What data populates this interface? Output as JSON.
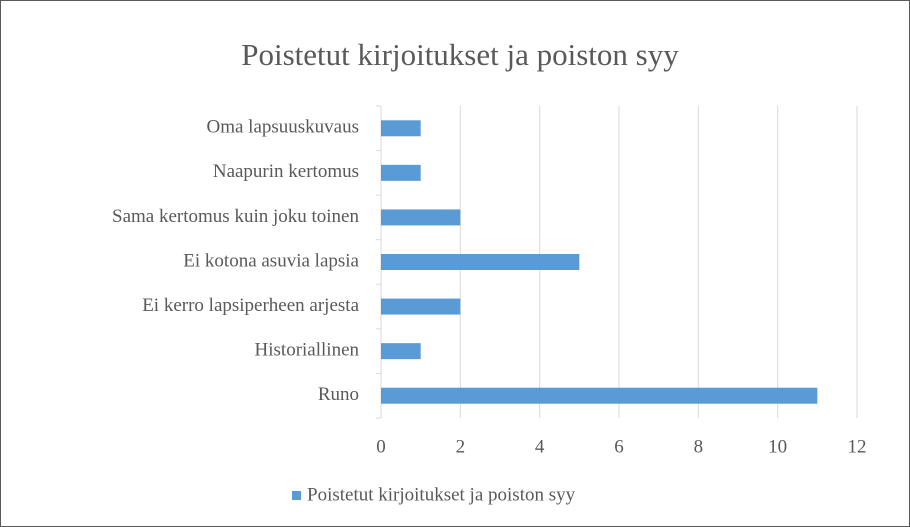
{
  "chart_data": {
    "type": "barh",
    "title": "Poistetut kirjoitukset ja poiston syy",
    "categories": [
      "Oma lapsuuskuvaus",
      "Naapurin kertomus",
      "Sama kertomus kuin joku toinen",
      "Ei kotona asuvia lapsia",
      "Ei kerro lapsiperheen arjesta",
      "Historiallinen",
      "Runo"
    ],
    "series": [
      {
        "name": "Poistetut kirjoitukset ja poiston syy",
        "color": "#5b9bd5",
        "values": [
          1,
          1,
          2,
          5,
          2,
          1,
          11
        ]
      }
    ],
    "xlim": [
      0,
      12
    ],
    "xticks": [
      0,
      2,
      4,
      6,
      8,
      10,
      12
    ],
    "grid": true,
    "legend": "bottom"
  }
}
